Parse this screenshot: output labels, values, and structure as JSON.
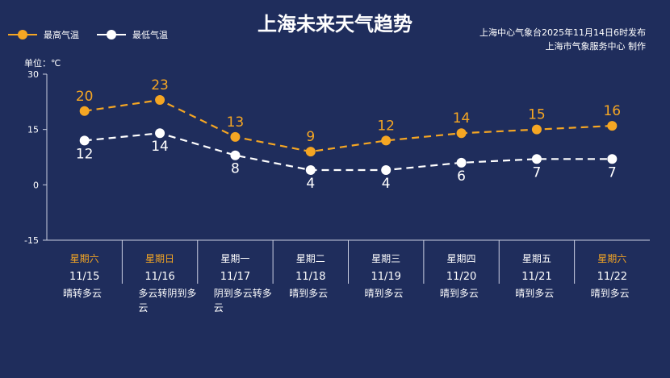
{
  "header": {
    "title": "上海未来天气趋势",
    "publisher_line1": "上海中心气象台2025年11月14日6时发布",
    "publisher_line2": "上海市气象服务中心 制作",
    "unit_label": "单位：℃"
  },
  "legend": {
    "high_label": "最高气温",
    "low_label": "最低气温"
  },
  "colors": {
    "background": "#1f2d5c",
    "high": "#f5a623",
    "low": "#ffffff",
    "weekend_text": "#f5a623",
    "weekday_text": "#ffffff",
    "axis": "#c8cde0"
  },
  "chart_data": {
    "type": "line",
    "title": "上海未来天气趋势",
    "ylabel": "单位：℃",
    "ylim": [
      -15,
      30
    ],
    "yticks": [
      -15,
      0,
      15,
      30
    ],
    "grid": false,
    "legend_position": "top-left",
    "categories": [
      "11/15",
      "11/16",
      "11/17",
      "11/18",
      "11/19",
      "11/20",
      "11/21",
      "11/22"
    ],
    "weekdays": [
      "星期六",
      "星期日",
      "星期一",
      "星期二",
      "星期三",
      "星期四",
      "星期五",
      "星期六"
    ],
    "weekend": [
      true,
      true,
      false,
      false,
      false,
      false,
      false,
      true
    ],
    "conditions": [
      "晴转多云",
      "多云转阴到多云",
      "阴到多云转多云",
      "晴到多云",
      "晴到多云",
      "晴到多云",
      "晴到多云",
      "晴到多云"
    ],
    "series": [
      {
        "name": "最高气温",
        "values": [
          20,
          23,
          13,
          9,
          12,
          14,
          15,
          16
        ]
      },
      {
        "name": "最低气温",
        "values": [
          12,
          14,
          8,
          4,
          4,
          6,
          7,
          7
        ]
      }
    ]
  }
}
